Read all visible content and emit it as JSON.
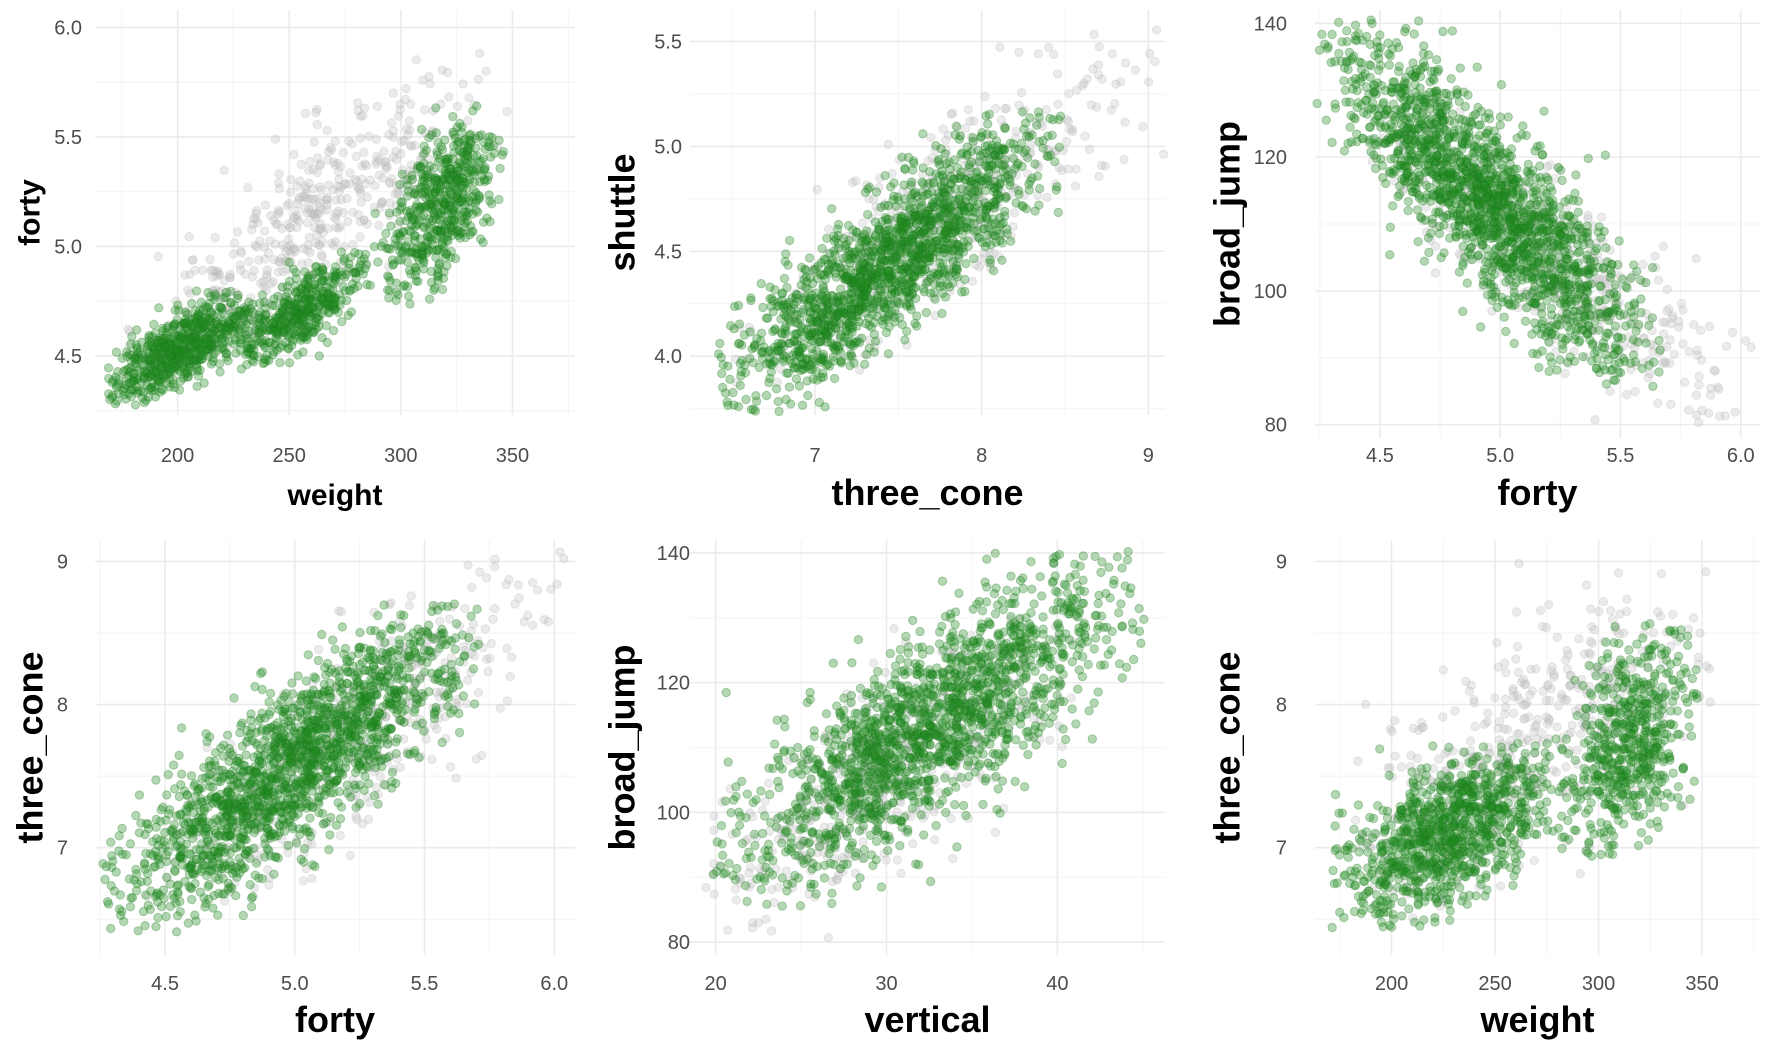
{
  "colors": {
    "green": "#228b22",
    "gray": "#bebebe",
    "grid_major": "#ebebeb",
    "grid_minor": "#f5f5f5",
    "background": "#ffffff"
  },
  "chart_data": [
    {
      "type": "scatter",
      "title": "",
      "xlabel": "weight",
      "ylabel": "forty",
      "xlim": [
        163,
        378
      ],
      "ylim": [
        4.23,
        6.08
      ],
      "xticks": [
        200,
        250,
        300,
        350
      ],
      "yticks": [
        4.5,
        5.0,
        5.5,
        6.0
      ],
      "xtick_labels": [
        "200",
        "250",
        "300",
        "350"
      ],
      "ytick_labels": [
        "4.5",
        "5.0",
        "5.5",
        "6.0"
      ],
      "grid": true,
      "legend": "none",
      "series": [
        {
          "color": "#228b22",
          "opacity": 0.35,
          "clusters": [
            {
              "x": [
                170,
                235
              ],
              "y": [
                4.3,
                4.78
              ],
              "n": 650,
              "corr": 0.75
            },
            {
              "x": [
                225,
                285
              ],
              "y": [
                4.45,
                4.95
              ],
              "n": 450,
              "corr": 0.75
            },
            {
              "x": [
                290,
                345
              ],
              "y": [
                4.75,
                5.6
              ],
              "n": 550,
              "corr": 0.6
            }
          ]
        },
        {
          "color": "#bebebe",
          "opacity": 0.3,
          "clusters": [
            {
              "x": [
                185,
                340
              ],
              "y": [
                4.45,
                5.85
              ],
              "n": 450,
              "corr": 0.85
            }
          ]
        }
      ]
    },
    {
      "type": "scatter",
      "title": "",
      "xlabel": "three_cone",
      "ylabel": "shuttle",
      "xlim": [
        6.25,
        9.1
      ],
      "ylim": [
        3.72,
        5.65
      ],
      "xticks": [
        7,
        8,
        9
      ],
      "yticks": [
        4.0,
        4.5,
        5.0,
        5.5
      ],
      "xtick_labels": [
        "7",
        "8",
        "9"
      ],
      "ytick_labels": [
        "4.0",
        "4.5",
        "5.0",
        "5.5"
      ],
      "grid": true,
      "legend": "none",
      "series": [
        {
          "color": "#228b22",
          "opacity": 0.35,
          "clusters": [
            {
              "x": [
                6.5,
                8.4
              ],
              "y": [
                3.8,
                5.1
              ],
              "n": 1600,
              "corr": 0.86
            }
          ]
        },
        {
          "color": "#bebebe",
          "opacity": 0.3,
          "clusters": [
            {
              "x": [
                6.6,
                9.0
              ],
              "y": [
                3.9,
                5.5
              ],
              "n": 400,
              "corr": 0.85
            }
          ]
        }
      ]
    },
    {
      "type": "scatter",
      "title": "",
      "xlabel": "forty",
      "ylabel": "broad_jump",
      "xlim": [
        4.23,
        6.08
      ],
      "ylim": [
        78,
        142
      ],
      "xticks": [
        4.5,
        5.0,
        5.5,
        6.0
      ],
      "yticks": [
        80,
        100,
        120,
        140
      ],
      "xtick_labels": [
        "4.5",
        "5.0",
        "5.5",
        "6.0"
      ],
      "ytick_labels": [
        "80",
        "100",
        "120",
        "140"
      ],
      "grid": true,
      "legend": "none",
      "series": [
        {
          "color": "#228b22",
          "opacity": 0.35,
          "clusters": [
            {
              "x": [
                4.3,
                5.6
              ],
              "y": [
                88,
                138
              ],
              "n": 1800,
              "corr": -0.85
            }
          ]
        },
        {
          "color": "#bebebe",
          "opacity": 0.3,
          "clusters": [
            {
              "x": [
                4.5,
                6.0
              ],
              "y": [
                82,
                125
              ],
              "n": 400,
              "corr": -0.85
            }
          ]
        }
      ]
    },
    {
      "type": "scatter",
      "title": "",
      "xlabel": "forty",
      "ylabel": "three_cone",
      "xlim": [
        4.23,
        6.08
      ],
      "ylim": [
        6.25,
        9.15
      ],
      "xticks": [
        4.5,
        5.0,
        5.5,
        6.0
      ],
      "yticks": [
        7,
        8,
        9
      ],
      "xtick_labels": [
        "4.5",
        "5.0",
        "5.5",
        "6.0"
      ],
      "ytick_labels": [
        "7",
        "8",
        "9"
      ],
      "grid": true,
      "legend": "none",
      "series": [
        {
          "color": "#228b22",
          "opacity": 0.35,
          "clusters": [
            {
              "x": [
                4.3,
                5.65
              ],
              "y": [
                6.5,
                8.6
              ],
              "n": 1700,
              "corr": 0.85
            }
          ]
        },
        {
          "color": "#bebebe",
          "opacity": 0.3,
          "clusters": [
            {
              "x": [
                4.5,
                6.0
              ],
              "y": [
                6.6,
                9.0
              ],
              "n": 400,
              "corr": 0.85
            }
          ]
        }
      ]
    },
    {
      "type": "scatter",
      "title": "",
      "xlabel": "vertical",
      "ylabel": "broad_jump",
      "xlim": [
        18.5,
        46.3
      ],
      "ylim": [
        78,
        142
      ],
      "xticks": [
        20,
        30,
        40
      ],
      "yticks": [
        80,
        100,
        120,
        140
      ],
      "xtick_labels": [
        "20",
        "30",
        "40"
      ],
      "ytick_labels": [
        "80",
        "100",
        "120",
        "140"
      ],
      "grid": true,
      "legend": "none",
      "series": [
        {
          "color": "#228b22",
          "opacity": 0.35,
          "clusters": [
            {
              "x": [
                21,
                44
              ],
              "y": [
                88,
                138
              ],
              "n": 1700,
              "corr": 0.8
            }
          ]
        },
        {
          "color": "#bebebe",
          "opacity": 0.3,
          "clusters": [
            {
              "x": [
                19,
                40
              ],
              "y": [
                82,
                128
              ],
              "n": 450,
              "corr": 0.78
            }
          ]
        }
      ]
    },
    {
      "type": "scatter",
      "title": "",
      "xlabel": "weight",
      "ylabel": "three_cone",
      "xlim": [
        163,
        378
      ],
      "ylim": [
        6.25,
        9.15
      ],
      "xticks": [
        200,
        250,
        300,
        350
      ],
      "yticks": [
        7,
        8,
        9
      ],
      "xtick_labels": [
        "200",
        "250",
        "300",
        "350"
      ],
      "ytick_labels": [
        "7",
        "8",
        "9"
      ],
      "grid": true,
      "legend": "none",
      "series": [
        {
          "color": "#228b22",
          "opacity": 0.35,
          "clusters": [
            {
              "x": [
                175,
                280
              ],
              "y": [
                6.5,
                7.7
              ],
              "n": 1000,
              "corr": 0.6
            },
            {
              "x": [
                285,
                345
              ],
              "y": [
                7.0,
                8.5
              ],
              "n": 600,
              "corr": 0.4
            }
          ]
        },
        {
          "color": "#bebebe",
          "opacity": 0.3,
          "clusters": [
            {
              "x": [
                180,
                350
              ],
              "y": [
                6.6,
                8.9
              ],
              "n": 450,
              "corr": 0.75
            }
          ]
        }
      ]
    }
  ]
}
